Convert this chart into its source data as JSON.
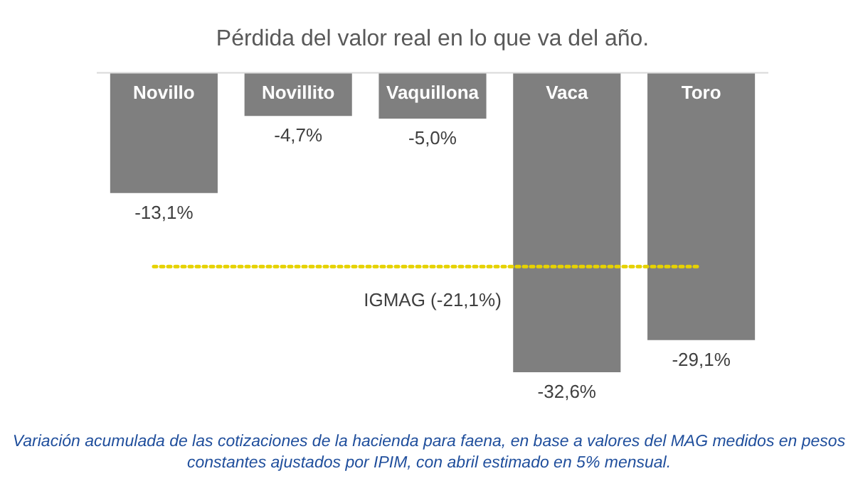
{
  "chart_data": {
    "type": "bar",
    "title": "Pérdida del valor real en lo que va del año.",
    "categories": [
      "Novillo",
      "Novillito",
      "Vaquillona",
      "Vaca",
      "Toro"
    ],
    "values": [
      -13.1,
      -4.7,
      -5.0,
      -32.6,
      -29.1
    ],
    "value_labels": [
      "-13,1%",
      "-4,7%",
      "-5,0%",
      "-32,6%",
      "-29,1%"
    ],
    "color": "#7f7f7f",
    "ref_lines": [
      {
        "axis": "y",
        "value": -21.1,
        "label": "IGMAG (-21,1%)",
        "color": "#e6d200",
        "line_style": "dotted"
      }
    ],
    "annotations": [
      "Variación acumulada de las cotizaciones de la hacienda para faena, en base a valores del MAG medidos en pesos constantes ajustados por IPIM, con abril estimado en 5% mensual."
    ],
    "legend": false
  }
}
